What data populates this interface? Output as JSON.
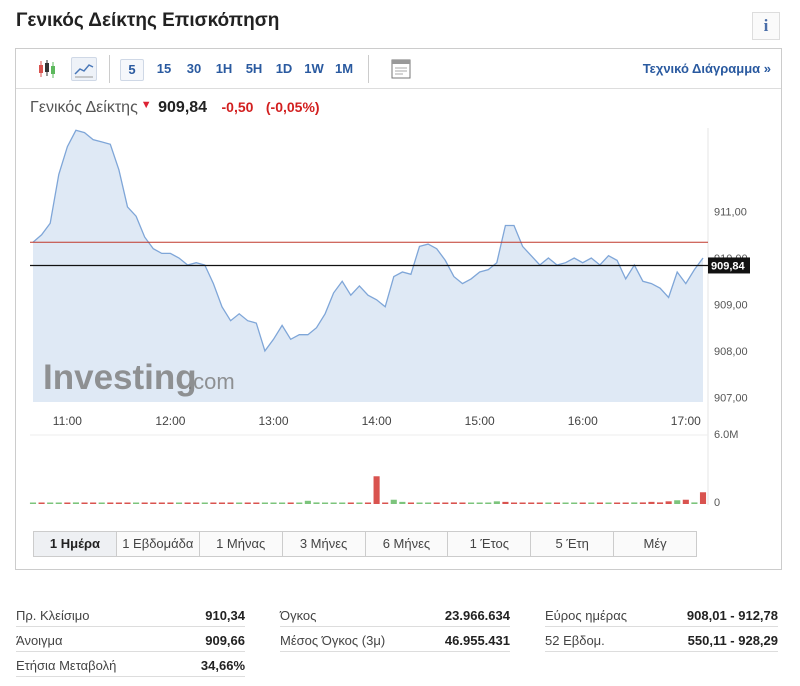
{
  "page_title": "Γενικός Δείκτης Επισκόπηση",
  "info_label": "i",
  "toolbar": {
    "icons": [
      "candlestick-icon",
      "line-chart-icon",
      "calendar-icon"
    ],
    "timeframes": [
      "5",
      "15",
      "30",
      "1H",
      "5H",
      "1D",
      "1W",
      "1M"
    ],
    "selected_timeframe": "5",
    "tech_link": "Τεχνικό Διάγραμμα »"
  },
  "quote": {
    "name": "Γενικός Δείκτης",
    "arrow": "▼",
    "price": "909,84",
    "change": "-0,50",
    "change_pct": "(-0,05%)"
  },
  "watermark": {
    "brand": "Investing",
    "suffix": ".com"
  },
  "chart_data": {
    "type": "area",
    "x": [
      "10:40",
      "10:45",
      "10:50",
      "10:55",
      "11:00",
      "11:05",
      "11:10",
      "11:15",
      "11:20",
      "11:25",
      "11:30",
      "11:35",
      "11:40",
      "11:45",
      "11:50",
      "11:55",
      "12:00",
      "12:05",
      "12:10",
      "12:15",
      "12:20",
      "12:25",
      "12:30",
      "12:35",
      "12:40",
      "12:45",
      "12:50",
      "12:55",
      "13:00",
      "13:05",
      "13:10",
      "13:15",
      "13:20",
      "13:25",
      "13:30",
      "13:35",
      "13:40",
      "13:45",
      "13:50",
      "13:55",
      "14:00",
      "14:05",
      "14:10",
      "14:15",
      "14:20",
      "14:25",
      "14:30",
      "14:35",
      "14:40",
      "14:45",
      "14:50",
      "14:55",
      "15:00",
      "15:05",
      "15:10",
      "15:15",
      "15:20",
      "15:25",
      "15:30",
      "15:35",
      "15:40",
      "15:45",
      "15:50",
      "15:55",
      "16:00",
      "16:05",
      "16:10",
      "16:15",
      "16:20",
      "16:25",
      "16:30",
      "16:35",
      "16:40",
      "16:45",
      "16:50",
      "16:55",
      "17:00",
      "17:05",
      "17:10"
    ],
    "series": [
      {
        "values": [
          910.34,
          910.5,
          910.75,
          911.8,
          912.4,
          912.75,
          912.7,
          912.55,
          912.5,
          912.45,
          911.9,
          911.1,
          910.9,
          910.45,
          910.2,
          910.1,
          910.1,
          910.0,
          909.85,
          909.9,
          909.85,
          909.45,
          908.95,
          908.65,
          908.8,
          908.65,
          908.6,
          908.0,
          908.25,
          908.55,
          908.25,
          908.35,
          908.35,
          908.5,
          908.8,
          909.25,
          909.5,
          909.2,
          909.4,
          909.2,
          909.1,
          908.95,
          909.6,
          909.7,
          909.65,
          910.25,
          910.3,
          910.2,
          909.95,
          909.6,
          909.45,
          909.55,
          909.7,
          909.75,
          909.9,
          910.7,
          910.7,
          910.25,
          910.05,
          909.85,
          910.0,
          909.85,
          909.9,
          910.0,
          909.9,
          910.0,
          909.85,
          910.05,
          909.95,
          909.55,
          909.85,
          909.5,
          909.45,
          909.35,
          909.15,
          909.7,
          909.45,
          909.75,
          910.0
        ]
      }
    ],
    "volume": [
      0.1,
      0.1,
      0.12,
      0.13,
      0.12,
      0.15,
      0.1,
      0.1,
      0.12,
      0.1,
      0.1,
      0.12,
      0.12,
      0.1,
      0.1,
      0.1,
      0.1,
      0.12,
      0.1,
      0.1,
      0.12,
      0.12,
      0.1,
      0.1,
      0.12,
      0.1,
      0.1,
      0.12,
      0.1,
      0.1,
      0.1,
      0.12,
      0.3,
      0.15,
      0.12,
      0.1,
      0.1,
      0.12,
      0.1,
      0.1,
      2.6,
      0.1,
      0.4,
      0.2,
      0.1,
      0.12,
      0.1,
      0.1,
      0.12,
      0.15,
      0.1,
      0.12,
      0.1,
      0.1,
      0.25,
      0.2,
      0.12,
      0.1,
      0.1,
      0.12,
      0.1,
      0.12,
      0.1,
      0.1,
      0.12,
      0.12,
      0.1,
      0.1,
      0.12,
      0.12,
      0.15,
      0.15,
      0.2,
      0.15,
      0.25,
      0.35,
      0.4,
      0.15,
      1.1
    ],
    "volume_up": [
      1,
      0,
      1,
      1,
      0,
      1,
      0,
      0,
      1,
      0,
      0,
      0,
      1,
      0,
      0,
      0,
      0,
      1,
      0,
      0,
      1,
      0,
      0,
      0,
      1,
      0,
      0,
      1,
      1,
      1,
      0,
      1,
      1,
      1,
      1,
      1,
      1,
      0,
      1,
      0,
      0,
      0,
      1,
      1,
      0,
      1,
      1,
      0,
      0,
      0,
      0,
      1,
      1,
      1,
      1,
      0,
      0,
      0,
      0,
      0,
      1,
      0,
      1,
      1,
      0,
      1,
      0,
      1,
      0,
      0,
      1,
      0,
      0,
      0,
      0,
      1,
      0,
      1,
      0
    ],
    "y_ticks": [
      "911,00",
      "910,00",
      "909,00",
      "908,00",
      "907,00"
    ],
    "y_tick_values": [
      911,
      910,
      909,
      908,
      907
    ],
    "x_ticks": [
      "11:00",
      "12:00",
      "13:00",
      "14:00",
      "15:00",
      "16:00",
      "17:00"
    ],
    "ylim": [
      906.9,
      912.8
    ],
    "prev_close": 910.34,
    "current": 909.84,
    "current_label": "909,84",
    "volume_labels": [
      "6.0M",
      "0"
    ],
    "volume_max": 6.0,
    "colors": {
      "line": "#7fa6d8",
      "fill": "#dfe9f5",
      "prev_close": "#c0392b",
      "current": "#111111",
      "vol_up": "#7cc47c",
      "vol_down": "#d9534f"
    }
  },
  "ranges": [
    "1 Ημέρα",
    "1 Εβδομάδα",
    "1 Μήνας",
    "3 Μήνες",
    "6 Μήνες",
    "1 Έτος",
    "5 Έτη",
    "Μέγ"
  ],
  "selected_range": "1 Ημέρα",
  "stats": [
    [
      {
        "label": "Πρ. Κλείσιμο",
        "value": "910,34"
      },
      {
        "label": "Άνοιγμα",
        "value": "909,66"
      },
      {
        "label": "Ετήσια Μεταβολή",
        "value": "34,66%"
      }
    ],
    [
      {
        "label": "Όγκος",
        "value": "23.966.634"
      },
      {
        "label": "Μέσος Όγκος (3μ)",
        "value": "46.955.431"
      }
    ],
    [
      {
        "label": "Εύρος ημέρας",
        "value": "908,01 - 912,78"
      },
      {
        "label": "52 Εβδομ.",
        "value": "550,11 - 928,29"
      }
    ]
  ]
}
